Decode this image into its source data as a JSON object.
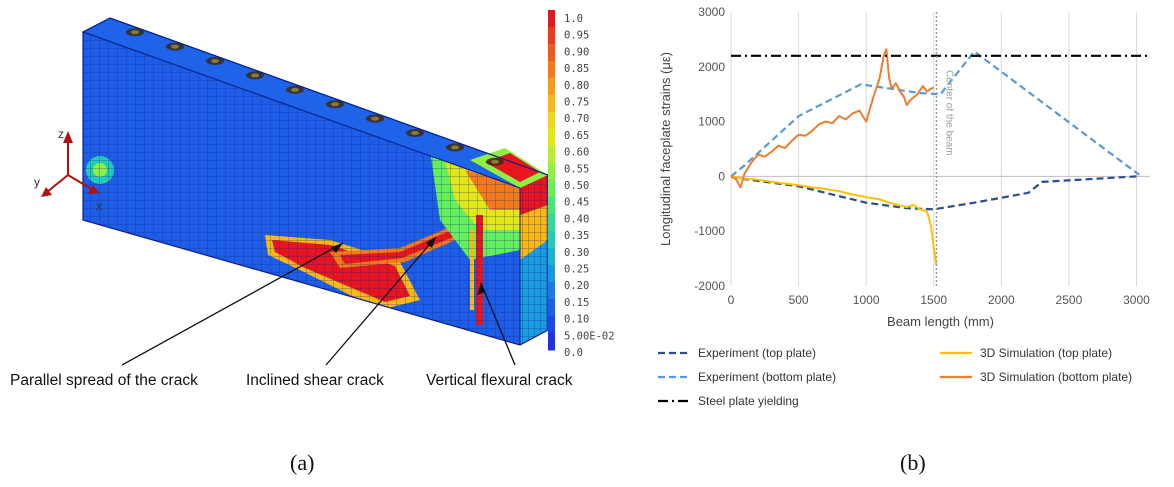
{
  "panel_a": {
    "caption": "(a)",
    "axes": {
      "z": "z",
      "y": "y",
      "x": "x"
    },
    "colorbar": {
      "ticks": [
        "1.0",
        "0.95",
        "0.90",
        "0.85",
        "0.80",
        "0.75",
        "0.70",
        "0.65",
        "0.60",
        "0.55",
        "0.50",
        "0.45",
        "0.40",
        "0.35",
        "0.30",
        "0.25",
        "0.20",
        "0.15",
        "0.10",
        "5.00E-02",
        "0.0"
      ],
      "colors": [
        "#e8141e",
        "#ee3a1a",
        "#f25a18",
        "#f57a16",
        "#f79a14",
        "#f9b812",
        "#f5d410",
        "#e2e812",
        "#b8ee2a",
        "#8ef040",
        "#63f058",
        "#40e878",
        "#2edc98",
        "#22ccb8",
        "#1ab4d2",
        "#1898e2",
        "#1a7aea",
        "#1c5eec",
        "#1e44ec",
        "#2032e6"
      ]
    },
    "annotations": [
      {
        "text": "Parallel spread of the crack"
      },
      {
        "text": "Inclined shear crack"
      },
      {
        "text": "Vertical flexural crack"
      }
    ]
  },
  "panel_b": {
    "caption": "(b)",
    "center_label": "Center of the beam",
    "legend_items": [
      {
        "label": "Experiment (top plate)"
      },
      {
        "label": "3D Simulation (top plate)"
      },
      {
        "label": "Experiment (bottom plate)"
      },
      {
        "label": "3D Simulation (bottom plate)"
      },
      {
        "label": "Steel plate yielding"
      }
    ]
  },
  "chart_data": {
    "type": "line",
    "xlabel": "Beam length (mm)",
    "ylabel": "Longitudinal faceplate strains (με)",
    "xlim": [
      0,
      3100
    ],
    "ylim": [
      -2000,
      3000
    ],
    "xticks": [
      "0",
      "500",
      "1000",
      "1500",
      "2000",
      "2500",
      "3000"
    ],
    "yticks": [
      "-2000",
      "-1000",
      "0",
      "1000",
      "2000",
      "3000"
    ],
    "grid": "vertical",
    "legend_position": "bottom",
    "vertical_marker_x": 1520,
    "series": [
      {
        "name": "Experiment (top plate)",
        "color": "#2b4f86",
        "dash": "dashed",
        "points": [
          [
            0,
            0
          ],
          [
            100,
            -50
          ],
          [
            500,
            -180
          ],
          [
            1000,
            -480
          ],
          [
            1300,
            -580
          ],
          [
            1500,
            -600
          ],
          [
            1800,
            -480
          ],
          [
            2200,
            -300
          ],
          [
            2300,
            -100
          ],
          [
            3000,
            0
          ]
        ]
      },
      {
        "name": "Experiment (bottom plate)",
        "color": "#5b9bd5",
        "dash": "dashed",
        "points": [
          [
            0,
            0
          ],
          [
            100,
            200
          ],
          [
            500,
            1100
          ],
          [
            960,
            1680
          ],
          [
            1400,
            1520
          ],
          [
            1550,
            1500
          ],
          [
            1800,
            2280
          ],
          [
            3020,
            30
          ]
        ]
      },
      {
        "name": "3D Simulation (top plate)",
        "color": "#ffc000",
        "dash": "solid",
        "points": [
          [
            0,
            0
          ],
          [
            100,
            -40
          ],
          [
            200,
            -60
          ],
          [
            300,
            -100
          ],
          [
            400,
            -130
          ],
          [
            500,
            -160
          ],
          [
            600,
            -200
          ],
          [
            700,
            -230
          ],
          [
            800,
            -270
          ],
          [
            900,
            -330
          ],
          [
            1000,
            -380
          ],
          [
            1100,
            -420
          ],
          [
            1200,
            -500
          ],
          [
            1300,
            -560
          ],
          [
            1350,
            -520
          ],
          [
            1400,
            -600
          ],
          [
            1450,
            -640
          ],
          [
            1480,
            -900
          ],
          [
            1500,
            -1300
          ],
          [
            1520,
            -1620
          ]
        ]
      },
      {
        "name": "3D Simulation (bottom plate)",
        "color": "#ed7d31",
        "dash": "solid",
        "points": [
          [
            0,
            0
          ],
          [
            40,
            -60
          ],
          [
            70,
            -200
          ],
          [
            100,
            50
          ],
          [
            150,
            250
          ],
          [
            200,
            400
          ],
          [
            250,
            360
          ],
          [
            300,
            450
          ],
          [
            350,
            560
          ],
          [
            400,
            520
          ],
          [
            450,
            650
          ],
          [
            500,
            760
          ],
          [
            550,
            740
          ],
          [
            600,
            830
          ],
          [
            650,
            950
          ],
          [
            700,
            1000
          ],
          [
            750,
            970
          ],
          [
            800,
            1100
          ],
          [
            850,
            1040
          ],
          [
            900,
            1150
          ],
          [
            950,
            1200
          ],
          [
            1000,
            1000
          ],
          [
            1030,
            1250
          ],
          [
            1060,
            1500
          ],
          [
            1100,
            1800
          ],
          [
            1130,
            2200
          ],
          [
            1150,
            2320
          ],
          [
            1170,
            1800
          ],
          [
            1190,
            1600
          ],
          [
            1220,
            1700
          ],
          [
            1250,
            1550
          ],
          [
            1280,
            1450
          ],
          [
            1300,
            1300
          ],
          [
            1330,
            1400
          ],
          [
            1380,
            1500
          ],
          [
            1420,
            1650
          ],
          [
            1450,
            1550
          ],
          [
            1480,
            1600
          ],
          [
            1500,
            1620
          ]
        ]
      },
      {
        "name": "Steel plate yielding",
        "color": "#000000",
        "dash": "dashdot",
        "points": [
          [
            0,
            2200
          ],
          [
            3100,
            2200
          ]
        ]
      }
    ]
  }
}
